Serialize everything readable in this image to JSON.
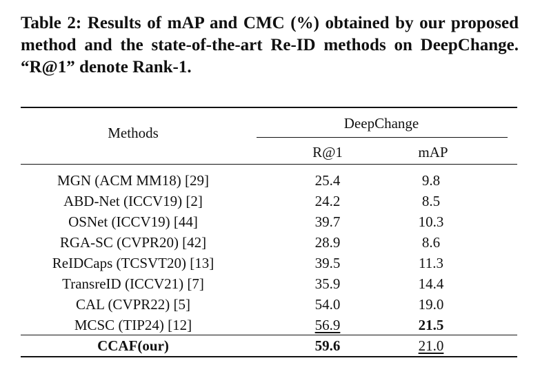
{
  "caption": "Table 2: Results of mAP and CMC (%) obtained by our proposed method and the state-of-the-art Re-ID methods on DeepChange. “R@1” denote Rank-1.",
  "header": {
    "methods": "Methods",
    "group": "DeepChange",
    "col_r1": "R@1",
    "col_map": "mAP"
  },
  "rows": [
    {
      "method": "MGN (ACM MM18) [29]",
      "r1": "25.4",
      "map": "9.8"
    },
    {
      "method": "ABD-Net (ICCV19) [2]",
      "r1": "24.2",
      "map": "8.5"
    },
    {
      "method": "OSNet (ICCV19) [44]",
      "r1": "39.7",
      "map": "10.3"
    },
    {
      "method": "RGA-SC (CVPR20) [42]",
      "r1": "28.9",
      "map": "8.6"
    },
    {
      "method": "ReIDCaps (TCSVT20) [13]",
      "r1": "39.5",
      "map": "11.3"
    },
    {
      "method": "TransreID (ICCV21) [7]",
      "r1": "35.9",
      "map": "14.4"
    },
    {
      "method": "CAL (CVPR22) [5]",
      "r1": "54.0",
      "map": "19.0"
    },
    {
      "method": "MCSC (TIP24) [12]",
      "r1": "56.9",
      "map": "21.5",
      "r1_style": "underline",
      "map_style": "bold"
    }
  ],
  "ours": {
    "method": "CCAF(our)",
    "r1": "59.6",
    "map": "21.0",
    "r1_style": "bold",
    "map_style": "underline"
  }
}
